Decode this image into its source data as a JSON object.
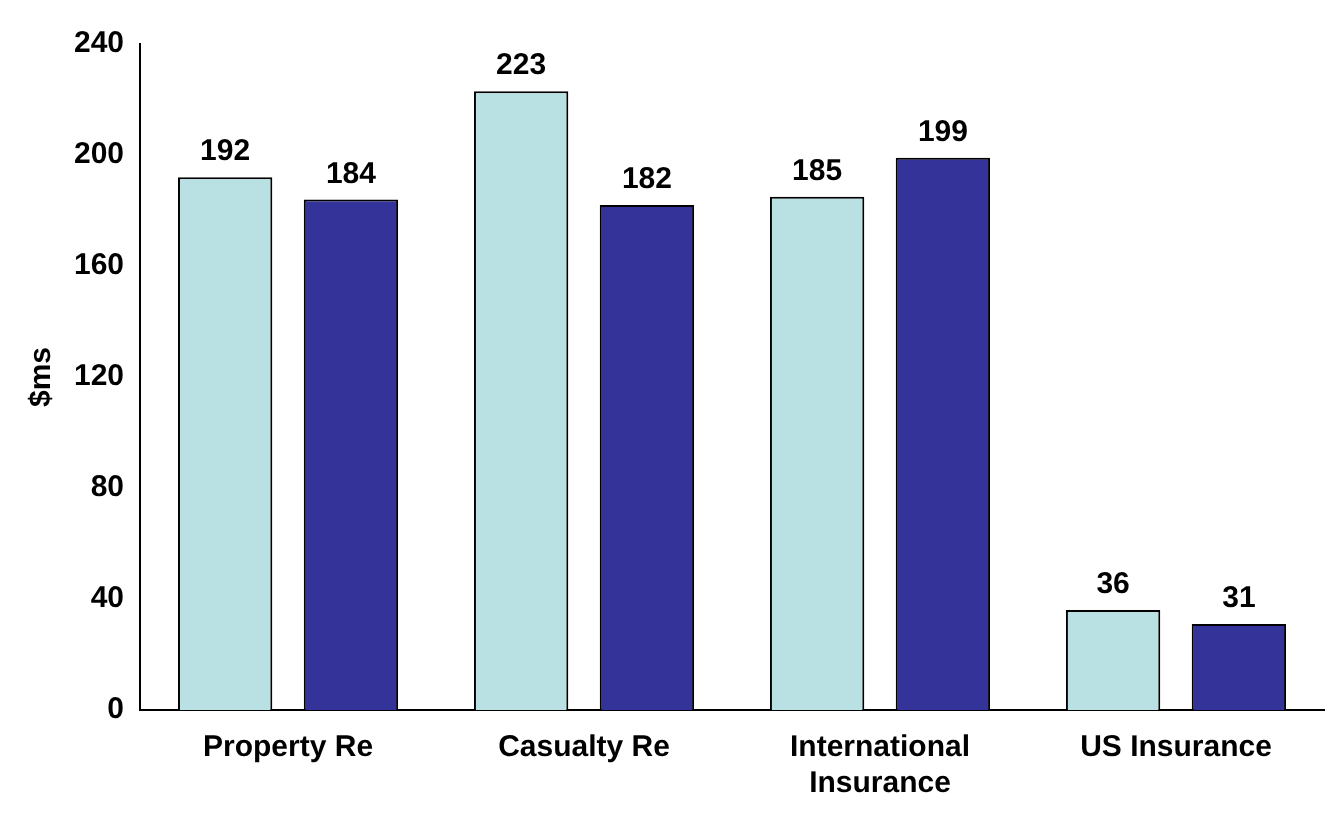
{
  "chart_data": {
    "type": "bar",
    "ylabel": "$ms",
    "categories": [
      "Property Re",
      "Casualty Re",
      "International Insurance",
      "US Insurance"
    ],
    "series": [
      {
        "color": "#b9e1e3",
        "values": [
          192,
          223,
          185,
          36
        ]
      },
      {
        "color": "#333399",
        "values": [
          184,
          182,
          199,
          31
        ]
      }
    ],
    "ylim": [
      0,
      240
    ],
    "yticks": [
      0,
      40,
      80,
      120,
      160,
      200,
      240
    ],
    "grid": false,
    "legend": false,
    "data_labels": true
  }
}
